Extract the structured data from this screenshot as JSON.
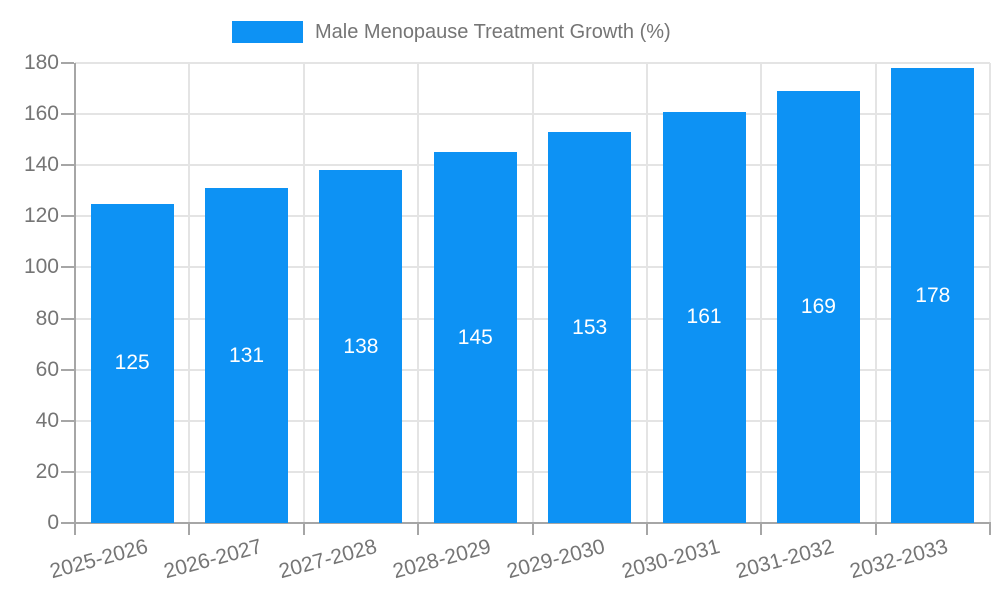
{
  "chart_data": {
    "type": "bar",
    "title": "Male Menopause Treatment Growth (%)",
    "categories": [
      "2025-2026",
      "2026-2027",
      "2027-2028",
      "2028-2029",
      "2029-2030",
      "2030-2031",
      "2031-2032",
      "2032-2033"
    ],
    "values": [
      125,
      131,
      138,
      145,
      153,
      161,
      169,
      178
    ],
    "xlabel": "",
    "ylabel": "",
    "ylim": [
      0,
      180
    ],
    "yticks": [
      0,
      20,
      40,
      60,
      80,
      100,
      120,
      140,
      160,
      180
    ],
    "grid": true,
    "legend_position": "top-center",
    "bar_value_labels": [
      "125",
      "131",
      "138",
      "145",
      "153",
      "161",
      "169",
      "178"
    ],
    "colors": {
      "bar": "#0d92f4",
      "grid": "#e4e4e4",
      "axis": "#a6a6a6",
      "text": "#757575",
      "value_label": "#ffffff",
      "background": "#ffffff"
    }
  }
}
